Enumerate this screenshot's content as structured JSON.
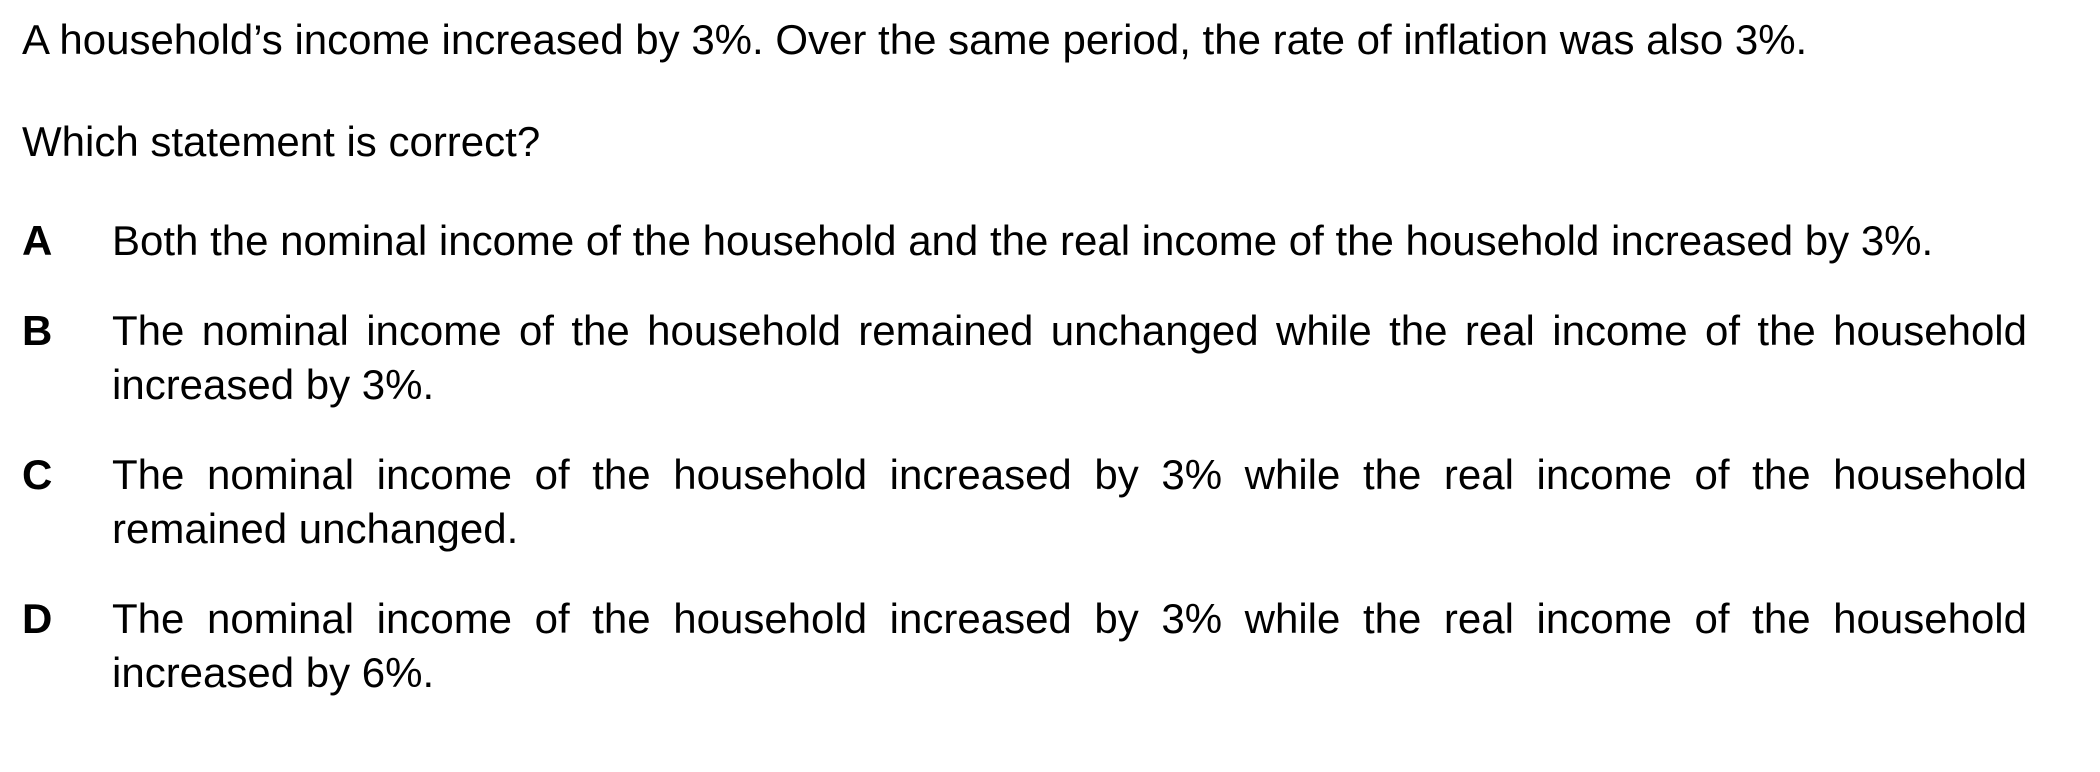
{
  "question": {
    "stem": "A household’s income increased by 3%. Over the same period, the rate of inflation was also 3%.",
    "prompt": "Which statement is correct?"
  },
  "options": [
    {
      "letter": "A",
      "text": "Both the nominal income of the household and the real income of the household increased by 3%."
    },
    {
      "letter": "B",
      "text": "The nominal income of the household remained unchanged while the real income of the household increased by 3%."
    },
    {
      "letter": "C",
      "text": "The nominal income of the household increased by 3% while the real income of the household remained unchanged."
    },
    {
      "letter": "D",
      "text": "The nominal income of the household increased by 3% while the real income of the household increased by 6%."
    }
  ]
}
